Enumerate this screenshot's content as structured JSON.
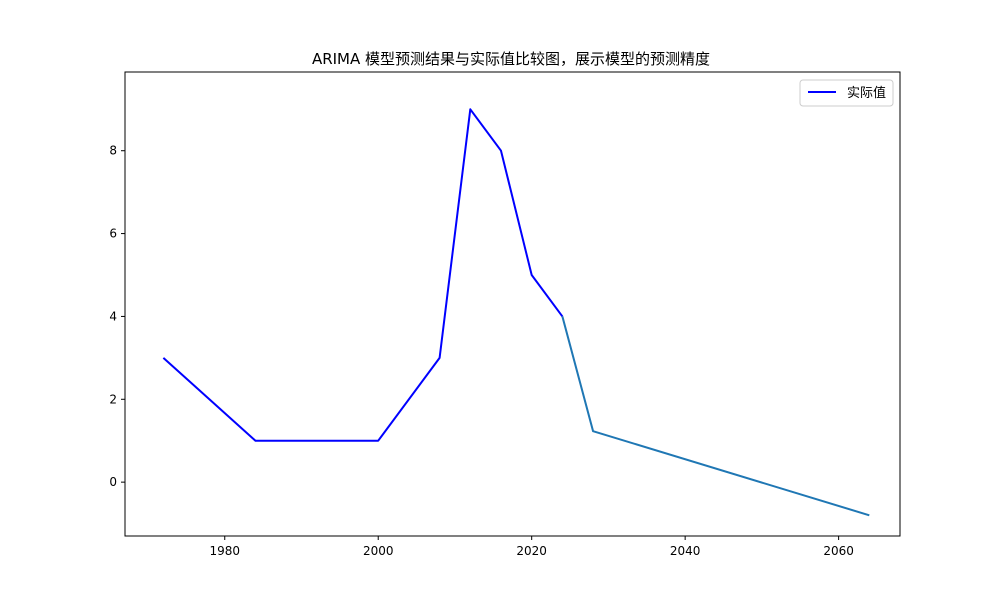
{
  "chart_data": {
    "type": "line",
    "title": "ARIMA 模型预测结果与实际值比较图，展示模型的预测精度",
    "xlabel": "",
    "ylabel": "",
    "xlim": [
      1967,
      2068
    ],
    "ylim": [
      -1.3,
      9.9
    ],
    "xticks": [
      1980,
      2000,
      2020,
      2040,
      2060
    ],
    "yticks": [
      0,
      2,
      4,
      6,
      8
    ],
    "grid": false,
    "legend_position": "top-right",
    "series": [
      {
        "name": "实际值",
        "color": "#0000ff",
        "x": [
          1972,
          1984,
          2000,
          2008,
          2012,
          2016,
          2020,
          2024
        ],
        "y": [
          3,
          1,
          1,
          3,
          9,
          8,
          5,
          4
        ]
      },
      {
        "color": "#1f77b4",
        "x": [
          2024,
          2028,
          2064
        ],
        "y": [
          4,
          1.23,
          -0.8
        ]
      }
    ]
  }
}
